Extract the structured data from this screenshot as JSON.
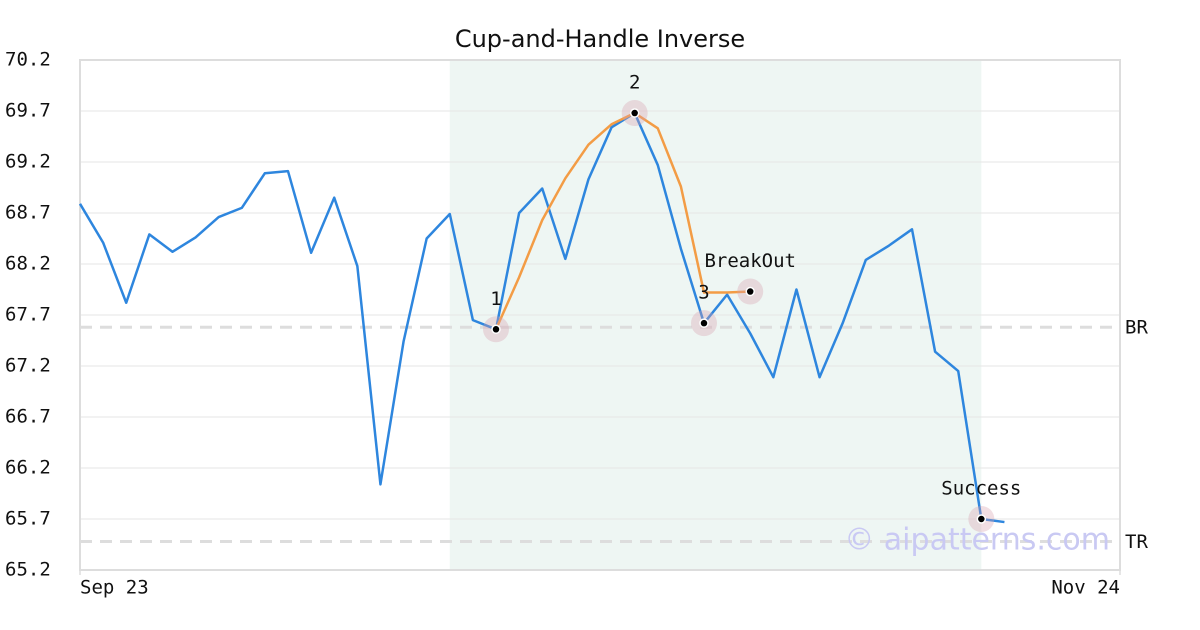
{
  "chart_data": {
    "type": "line",
    "title": "Cup-and-Handle Inverse",
    "x": [
      0,
      1,
      2,
      3,
      4,
      5,
      6,
      7,
      8,
      9,
      10,
      11,
      12,
      13,
      14,
      15,
      16,
      17,
      18,
      19,
      20,
      21,
      22,
      23,
      24,
      25,
      26,
      27,
      28,
      29,
      30,
      31,
      32,
      33,
      34,
      35,
      36,
      37,
      38,
      39,
      40
    ],
    "xlim": [
      0,
      45
    ],
    "xticks": [
      {
        "value": 0,
        "label": "Sep 23"
      },
      {
        "value": 45,
        "label": "Nov 24"
      }
    ],
    "ylim": [
      65.2,
      70.2
    ],
    "yticks": [
      65.2,
      65.7,
      66.2,
      66.7,
      67.2,
      67.7,
      68.2,
      68.7,
      69.2,
      69.7,
      70.2
    ],
    "grid": true,
    "series": [
      {
        "color": "#2e86de",
        "values": [
          68.79,
          68.41,
          67.82,
          68.49,
          68.32,
          68.46,
          68.66,
          68.75,
          69.09,
          69.11,
          68.31,
          68.85,
          68.18,
          66.04,
          67.44,
          68.45,
          68.69,
          67.65,
          67.56,
          68.7,
          68.94,
          68.25,
          69.03,
          69.54,
          69.68,
          69.17,
          68.35,
          67.62,
          67.9,
          67.52,
          67.09,
          67.95,
          67.09,
          67.62,
          68.24,
          68.38,
          68.54,
          67.34,
          67.15,
          65.7,
          65.67
        ]
      },
      {
        "color": "#f39c45",
        "values": [
          null,
          null,
          null,
          null,
          null,
          null,
          null,
          null,
          null,
          null,
          null,
          null,
          null,
          null,
          null,
          null,
          null,
          null,
          67.56,
          68.07,
          68.63,
          69.04,
          69.37,
          69.57,
          69.68,
          69.53,
          68.96,
          67.92,
          67.92,
          67.93,
          null,
          null,
          null,
          null,
          null,
          null,
          null,
          null,
          null,
          null,
          null
        ]
      }
    ],
    "highlight": {
      "x": [
        16,
        39
      ],
      "color": "#eef6f3"
    },
    "reference_lines": [
      {
        "label": "BR",
        "y": 67.58
      },
      {
        "label": "TR",
        "y": 65.48
      }
    ],
    "annotations": [
      {
        "label": "1",
        "x": 18,
        "y": 67.56
      },
      {
        "label": "2",
        "x": 24,
        "y": 69.68
      },
      {
        "label": "3",
        "x": 27,
        "y": 67.62
      },
      {
        "label": "BreakOut",
        "x": 29,
        "y": 67.93
      },
      {
        "label": "Success",
        "x": 39,
        "y": 65.7
      }
    ],
    "watermark": "© aipatterns.com"
  }
}
